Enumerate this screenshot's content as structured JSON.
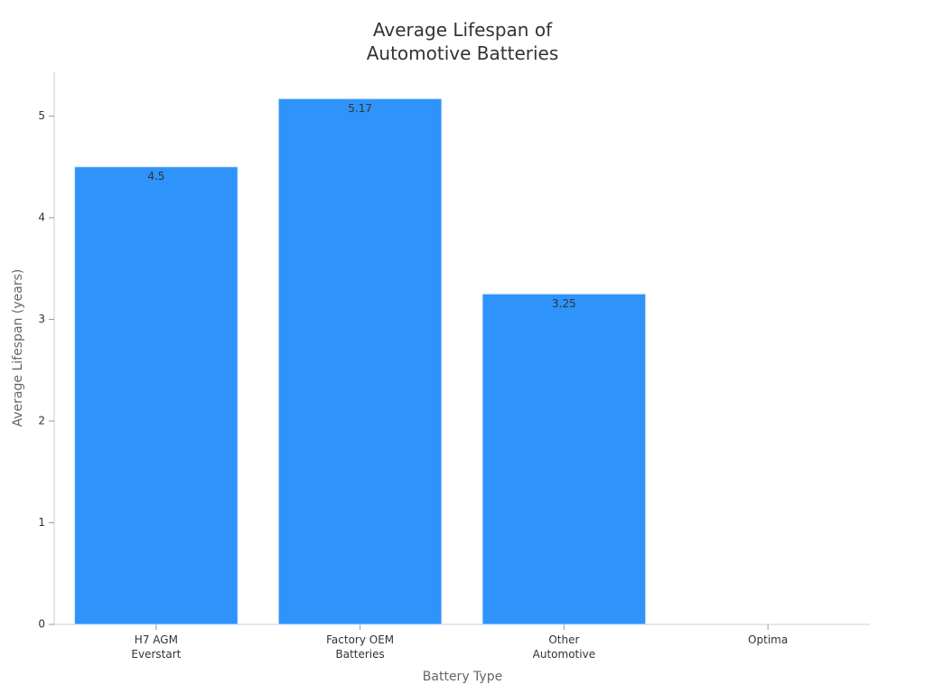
{
  "chart_data": {
    "type": "bar",
    "title": "Average Lifespan of\nAutomotive Batteries",
    "x_label": "Battery Type",
    "y_label": "Average Lifespan (years)",
    "categories": [
      "H7 AGM\nEverstart",
      "Factory OEM\nBatteries",
      "Other\nAutomotive",
      "Optima"
    ],
    "values": [
      4.5,
      5.17,
      3.25,
      null
    ],
    "color": "#2e93fa",
    "ylim": [
      0,
      5.43
    ],
    "yticks": [
      0,
      1,
      2,
      3,
      4,
      5
    ],
    "grid": false
  }
}
